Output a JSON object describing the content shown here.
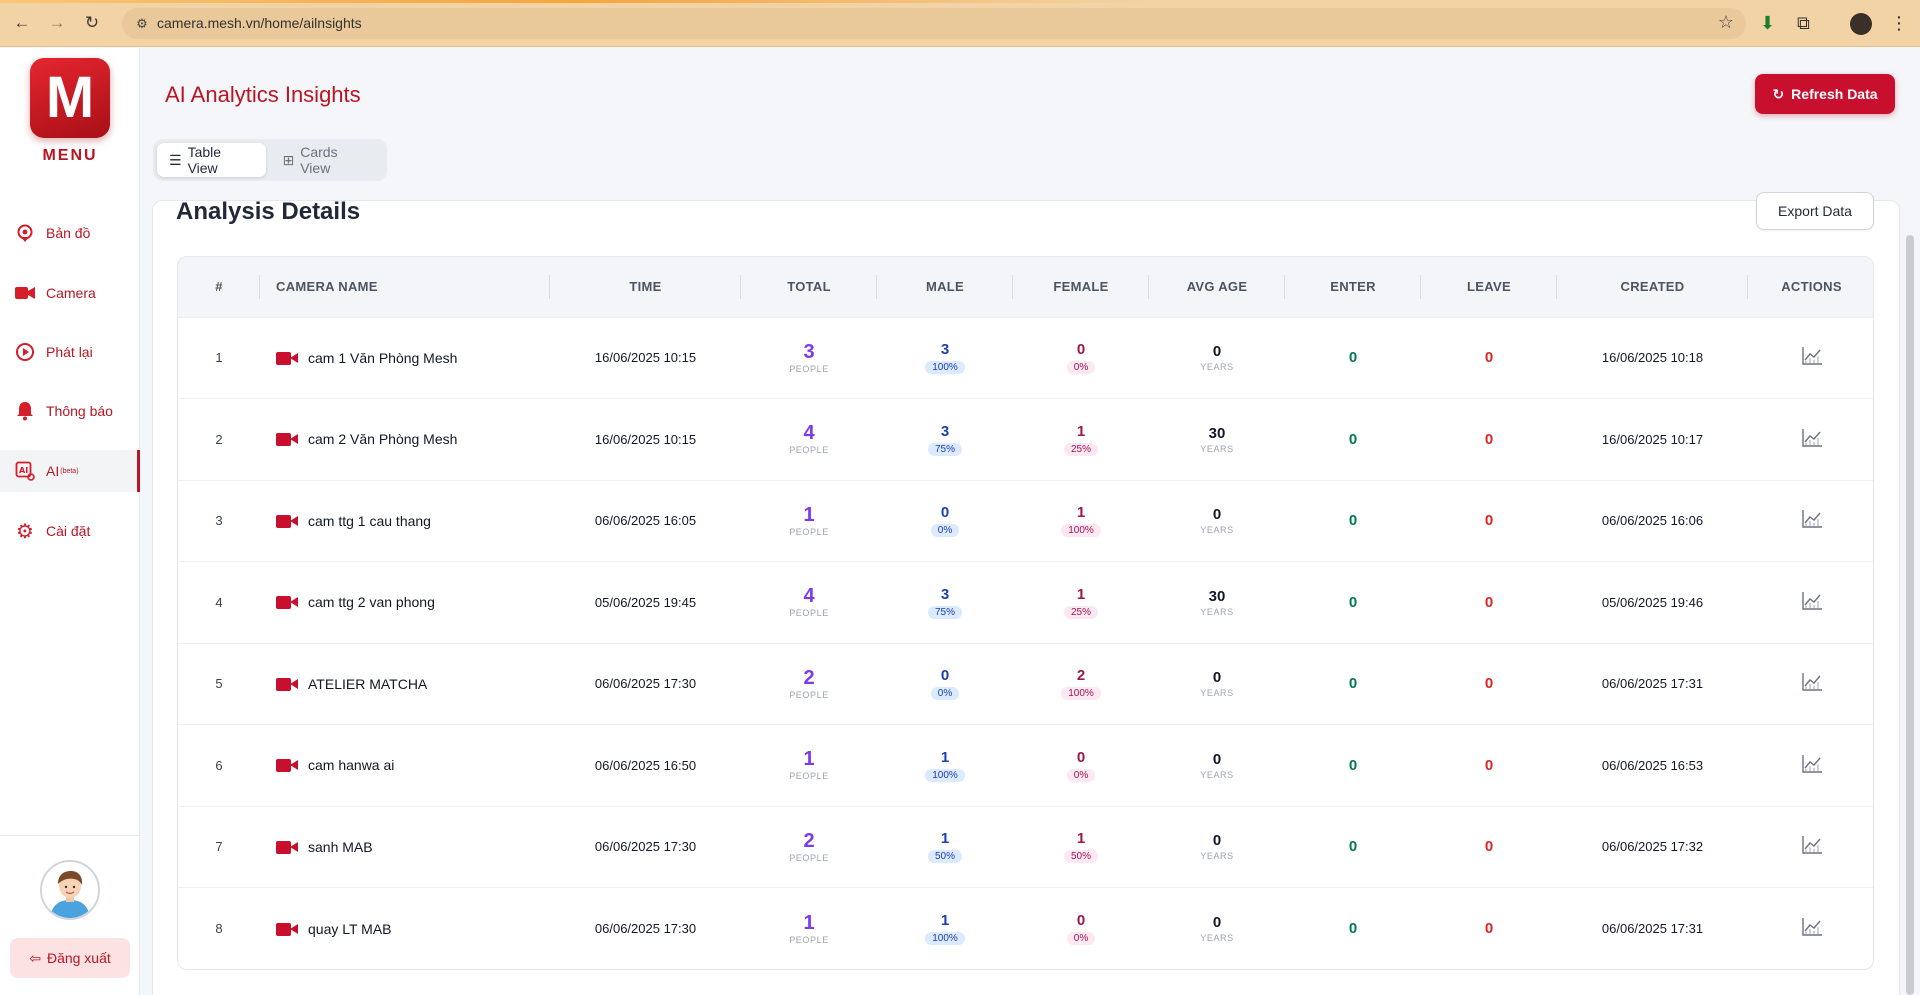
{
  "browser": {
    "url": "camera.mesh.vn/home/ailnsights"
  },
  "sidebar": {
    "logo_letter": "M",
    "menu_label": "MENU",
    "items": [
      {
        "label": "Bản đồ",
        "icon": "map-pin-icon"
      },
      {
        "label": "Camera",
        "icon": "video-camera-icon"
      },
      {
        "label": "Phát lại",
        "icon": "playback-icon"
      },
      {
        "label": "Thông báo",
        "icon": "bell-icon"
      },
      {
        "label": "AI",
        "sup": "(beta)",
        "icon": "ai-icon",
        "active": true
      },
      {
        "label": "Cài đặt",
        "icon": "gear-icon"
      }
    ],
    "logout_label": "Đăng xuất"
  },
  "header": {
    "title": "AI Analytics Insights",
    "refresh_label": "Refresh Data"
  },
  "view_toggle": {
    "table_label": "Table View",
    "cards_label": "Cards View",
    "active": "table"
  },
  "panel": {
    "title": "Analysis Details",
    "export_label": "Export Data"
  },
  "table": {
    "headers": [
      "#",
      "CAMERA NAME",
      "TIME",
      "TOTAL",
      "MALE",
      "FEMALE",
      "AVG AGE",
      "ENTER",
      "LEAVE",
      "CREATED",
      "ACTIONS"
    ],
    "people_unit": "PEOPLE",
    "years_unit": "YEARS",
    "rows": [
      {
        "idx": "1",
        "camera": "cam 1 Văn Phòng Mesh",
        "time": "16/06/2025 10:15",
        "total": "3",
        "male": "3",
        "male_pct": "100%",
        "female": "0",
        "female_pct": "0%",
        "age": "0",
        "enter": "0",
        "leave": "0",
        "created": "16/06/2025 10:18"
      },
      {
        "idx": "2",
        "camera": "cam 2 Văn Phòng Mesh",
        "time": "16/06/2025 10:15",
        "total": "4",
        "male": "3",
        "male_pct": "75%",
        "female": "1",
        "female_pct": "25%",
        "age": "30",
        "enter": "0",
        "leave": "0",
        "created": "16/06/2025 10:17"
      },
      {
        "idx": "3",
        "camera": "cam ttg 1 cau thang",
        "time": "06/06/2025 16:05",
        "total": "1",
        "male": "0",
        "male_pct": "0%",
        "female": "1",
        "female_pct": "100%",
        "age": "0",
        "enter": "0",
        "leave": "0",
        "created": "06/06/2025 16:06"
      },
      {
        "idx": "4",
        "camera": "cam ttg 2 van phong",
        "time": "05/06/2025 19:45",
        "total": "4",
        "male": "3",
        "male_pct": "75%",
        "female": "1",
        "female_pct": "25%",
        "age": "30",
        "enter": "0",
        "leave": "0",
        "created": "05/06/2025 19:46"
      },
      {
        "idx": "5",
        "camera": "ATELIER MATCHA",
        "time": "06/06/2025 17:30",
        "total": "2",
        "male": "0",
        "male_pct": "0%",
        "female": "2",
        "female_pct": "100%",
        "age": "0",
        "enter": "0",
        "leave": "0",
        "created": "06/06/2025 17:31"
      },
      {
        "idx": "6",
        "camera": "cam hanwa ai",
        "time": "06/06/2025 16:50",
        "total": "1",
        "male": "1",
        "male_pct": "100%",
        "female": "0",
        "female_pct": "0%",
        "age": "0",
        "enter": "0",
        "leave": "0",
        "created": "06/06/2025 16:53"
      },
      {
        "idx": "7",
        "camera": "sanh MAB",
        "time": "06/06/2025 17:30",
        "total": "2",
        "male": "1",
        "male_pct": "50%",
        "female": "1",
        "female_pct": "50%",
        "age": "0",
        "enter": "0",
        "leave": "0",
        "created": "06/06/2025 17:32"
      },
      {
        "idx": "8",
        "camera": "quay LT MAB",
        "time": "06/06/2025 17:30",
        "total": "1",
        "male": "1",
        "male_pct": "100%",
        "female": "0",
        "female_pct": "0%",
        "age": "0",
        "enter": "0",
        "leave": "0",
        "created": "06/06/2025 17:31"
      }
    ]
  },
  "colors": {
    "brand": "#c8102e",
    "total": "#7c3aed",
    "male": "#1e40af",
    "female": "#9d174d",
    "enter": "#047857",
    "leave": "#dc2626"
  }
}
